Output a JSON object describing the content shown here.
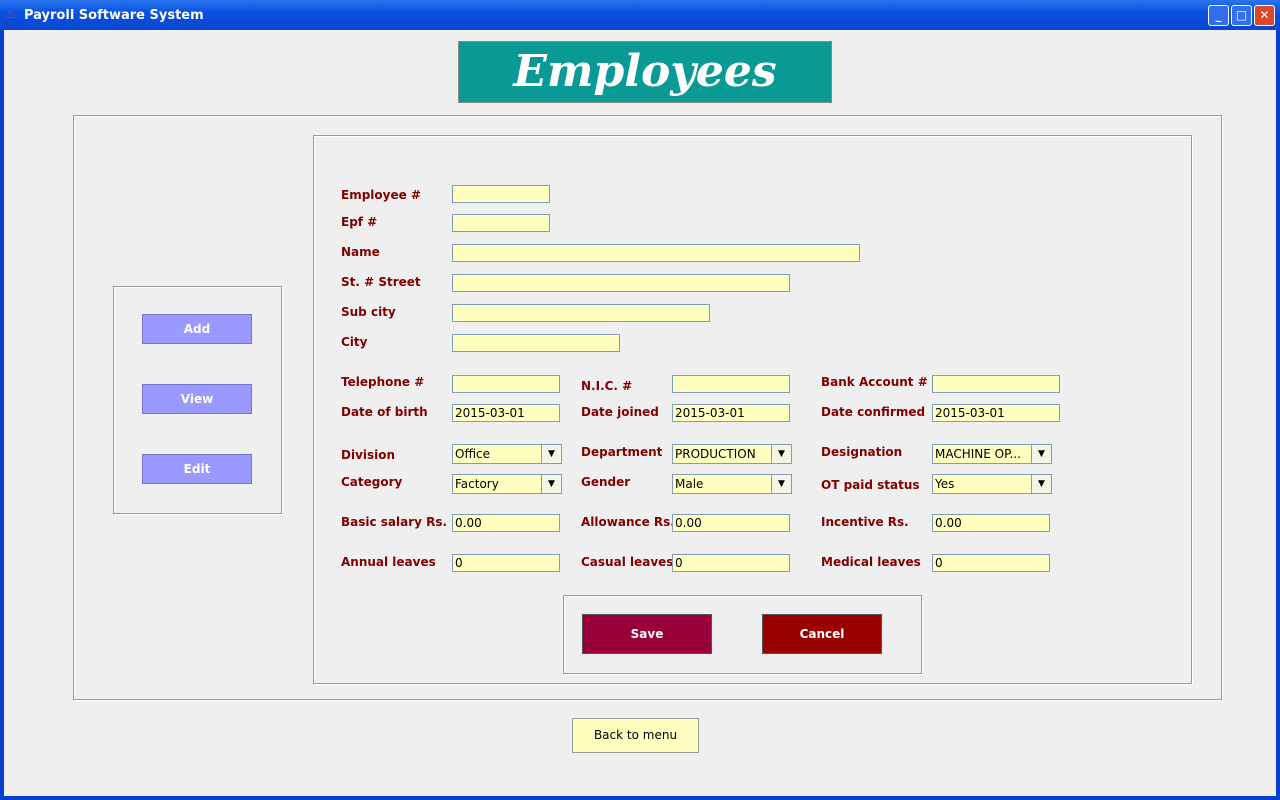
{
  "window": {
    "title": "Payroll Software System"
  },
  "header": {
    "title": "Employees"
  },
  "side": {
    "add": "Add",
    "view": "View",
    "edit": "Edit"
  },
  "form": {
    "employee_no": {
      "label": "Employee #",
      "value": ""
    },
    "epf_no": {
      "label": "Epf #",
      "value": ""
    },
    "name": {
      "label": "Name",
      "value": ""
    },
    "street": {
      "label": "St. # Street",
      "value": ""
    },
    "sub_city": {
      "label": "Sub city",
      "value": ""
    },
    "city": {
      "label": "City",
      "value": ""
    },
    "telephone": {
      "label": "Telephone #",
      "value": ""
    },
    "nic": {
      "label": "N.I.C. #",
      "value": ""
    },
    "bank_account": {
      "label": "Bank Account #",
      "value": ""
    },
    "date_of_birth": {
      "label": "Date of birth",
      "value": "2015-03-01"
    },
    "date_joined": {
      "label": "Date joined",
      "value": "2015-03-01"
    },
    "date_confirmed": {
      "label": "Date confirmed",
      "value": "2015-03-01"
    },
    "division": {
      "label": "Division",
      "value": "Office"
    },
    "department": {
      "label": "Department",
      "value": "PRODUCTION"
    },
    "designation": {
      "label": "Designation",
      "value": "MACHINE OP..."
    },
    "category": {
      "label": "Category",
      "value": "Factory"
    },
    "gender": {
      "label": "Gender",
      "value": "Male"
    },
    "ot_paid_status": {
      "label": "OT paid status",
      "value": "Yes"
    },
    "basic_salary": {
      "label": "Basic salary Rs.",
      "value": "0.00"
    },
    "allowance": {
      "label": "Allowance Rs.",
      "value": "0.00"
    },
    "incentive": {
      "label": "Incentive Rs.",
      "value": "0.00"
    },
    "annual_leaves": {
      "label": "Annual leaves",
      "value": "0"
    },
    "casual_leaves": {
      "label": "Casual leaves",
      "value": "0"
    },
    "medical_leaves": {
      "label": "Medical leaves",
      "value": "0"
    }
  },
  "actions": {
    "save": "Save",
    "cancel": "Cancel",
    "back": "Back to menu"
  },
  "colors": {
    "label": "#800000",
    "field": "#ffffc0",
    "banner": "#0a9a96",
    "side_button": "#9999ff",
    "save": "#99003a",
    "cancel": "#990000"
  }
}
